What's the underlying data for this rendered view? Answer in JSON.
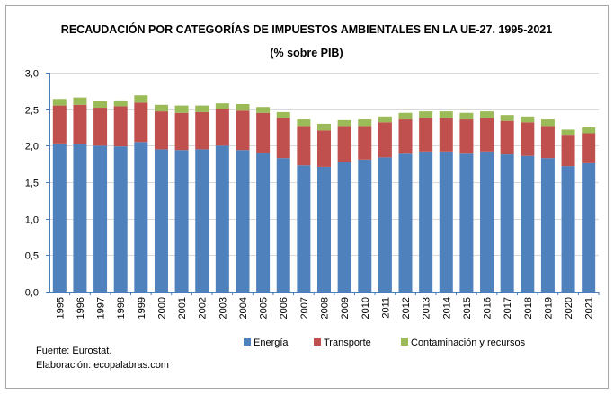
{
  "chart_data": {
    "type": "bar",
    "stacked": true,
    "title": "RECAUDACIÓN POR CATEGORÍAS DE IMPUESTOS AMBIENTALES EN LA UE-27. 1995-2021",
    "subtitle": "(% sobre PIB)",
    "xlabel": "",
    "ylabel": "",
    "ylim": [
      0,
      3.0
    ],
    "yticks": [
      "0,0",
      "0,5",
      "1,0",
      "1,5",
      "2,0",
      "2,5",
      "3,0"
    ],
    "grid": true,
    "legend_position": "bottom",
    "categories": [
      "1995",
      "1996",
      "1997",
      "1998",
      "1999",
      "2000",
      "2001",
      "2002",
      "2003",
      "2004",
      "2005",
      "2006",
      "2007",
      "2008",
      "2009",
      "2010",
      "2011",
      "2012",
      "2013",
      "2014",
      "2015",
      "2016",
      "2017",
      "2018",
      "2019",
      "2020",
      "2021"
    ],
    "series": [
      {
        "name": "Energía",
        "color": "#4F81BD",
        "values": [
          2.03,
          2.02,
          2.0,
          1.99,
          2.05,
          1.95,
          1.94,
          1.95,
          2.0,
          1.94,
          1.9,
          1.83,
          1.73,
          1.71,
          1.78,
          1.81,
          1.84,
          1.89,
          1.92,
          1.92,
          1.89,
          1.92,
          1.88,
          1.86,
          1.83,
          1.72,
          1.76
        ]
      },
      {
        "name": "Transporte",
        "color": "#C0504D",
        "values": [
          0.52,
          0.54,
          0.52,
          0.55,
          0.54,
          0.52,
          0.51,
          0.51,
          0.5,
          0.54,
          0.55,
          0.55,
          0.54,
          0.5,
          0.49,
          0.46,
          0.48,
          0.47,
          0.46,
          0.46,
          0.47,
          0.46,
          0.46,
          0.46,
          0.44,
          0.43,
          0.41
        ]
      },
      {
        "name": "Contaminación y recursos",
        "color": "#9BBB59",
        "values": [
          0.09,
          0.1,
          0.09,
          0.08,
          0.1,
          0.09,
          0.1,
          0.09,
          0.08,
          0.09,
          0.08,
          0.08,
          0.09,
          0.09,
          0.08,
          0.09,
          0.08,
          0.09,
          0.09,
          0.09,
          0.09,
          0.09,
          0.08,
          0.08,
          0.09,
          0.07,
          0.08
        ]
      }
    ]
  },
  "footer": {
    "source": "Fuente: Eurostat.",
    "credit": "Elaboración: ecopalabras.com"
  }
}
